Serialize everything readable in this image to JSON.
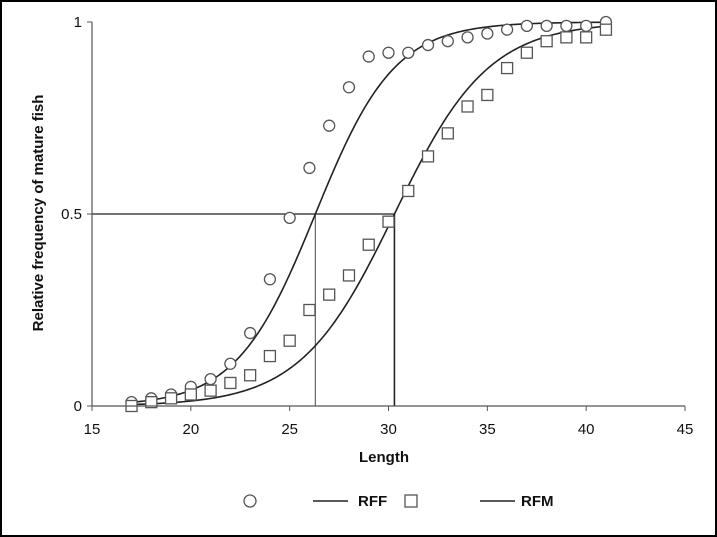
{
  "chart_data": {
    "type": "scatter",
    "title": "",
    "xlabel": "Length",
    "ylabel": "Relative frequency of mature fish",
    "xlim": [
      15,
      45
    ],
    "ylim": [
      0,
      1
    ],
    "x_ticks": [
      "15",
      "20",
      "25",
      "30",
      "35",
      "40",
      "45"
    ],
    "y_ticks": [
      "0",
      "0.5",
      "1"
    ],
    "grid": false,
    "legend_position": "bottom",
    "series": [
      {
        "name": "",
        "kind": "points",
        "marker": "circle",
        "x": [
          17,
          18,
          19,
          20,
          21,
          22,
          23,
          24,
          25,
          26,
          27,
          28,
          29,
          30,
          31,
          32,
          33,
          34,
          35,
          36,
          37,
          38,
          39,
          40,
          41
        ],
        "y": [
          0.01,
          0.02,
          0.03,
          0.05,
          0.07,
          0.11,
          0.19,
          0.33,
          0.49,
          0.62,
          0.73,
          0.83,
          0.91,
          0.92,
          0.92,
          0.94,
          0.95,
          0.96,
          0.97,
          0.98,
          0.99,
          0.99,
          0.99,
          0.99,
          1.0
        ]
      },
      {
        "name": "RFF",
        "kind": "line",
        "L50": 26.3,
        "slope": 0.5
      },
      {
        "name": "",
        "kind": "points",
        "marker": "square",
        "x": [
          17,
          18,
          19,
          20,
          21,
          22,
          23,
          24,
          25,
          26,
          27,
          28,
          29,
          30,
          31,
          32,
          33,
          34,
          35,
          36,
          37,
          38,
          39,
          40,
          41
        ],
        "y": [
          0.0,
          0.01,
          0.02,
          0.03,
          0.04,
          0.06,
          0.08,
          0.13,
          0.17,
          0.25,
          0.29,
          0.34,
          0.42,
          0.48,
          0.56,
          0.65,
          0.71,
          0.78,
          0.81,
          0.88,
          0.92,
          0.95,
          0.96,
          0.96,
          0.98
        ]
      },
      {
        "name": "RFM",
        "kind": "line",
        "L50": 30.3,
        "slope": 0.42
      }
    ],
    "reference_lines": {
      "y": 0.5,
      "x": [
        26.3,
        30.3
      ]
    },
    "legend": [
      "RFF",
      "RFM"
    ]
  }
}
